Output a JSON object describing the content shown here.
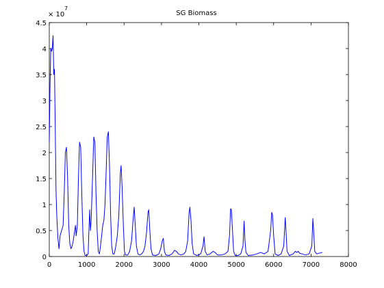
{
  "chart_data": {
    "type": "line",
    "title": "SG  Biomass",
    "xlabel": "",
    "ylabel": "",
    "xlim": [
      0,
      8000
    ],
    "ylim": [
      0,
      4.5
    ],
    "y_multiplier_label": "× 10",
    "y_multiplier_exponent": "7",
    "x_ticks": [
      0,
      1000,
      2000,
      3000,
      4000,
      5000,
      6000,
      7000,
      8000
    ],
    "x_tick_labels": [
      "0",
      "1000",
      "2000",
      "3000",
      "4000",
      "5000",
      "6000",
      "7000",
      "8000"
    ],
    "y_ticks": [
      0,
      0.5,
      1,
      1.5,
      2,
      2.5,
      3,
      3.5,
      4,
      4.5
    ],
    "y_tick_labels": [
      "0",
      "0.5",
      "1",
      "1.5",
      "2",
      "2.5",
      "3",
      "3.5",
      "4",
      "4.5"
    ],
    "grid": false,
    "line_color": "#0000ff",
    "series": [
      {
        "values": [
          [
            0,
            2.2
          ],
          [
            20,
            3.3
          ],
          [
            40,
            4.0
          ],
          [
            60,
            3.95
          ],
          [
            80,
            4.0
          ],
          [
            100,
            4.25
          ],
          [
            120,
            3.5
          ],
          [
            140,
            3.6
          ],
          [
            160,
            2.5
          ],
          [
            180,
            1.3
          ],
          [
            200,
            0.8
          ],
          [
            230,
            0.35
          ],
          [
            260,
            0.15
          ],
          [
            290,
            0.4
          ],
          [
            330,
            0.5
          ],
          [
            370,
            0.6
          ],
          [
            400,
            1.2
          ],
          [
            430,
            2.0
          ],
          [
            460,
            2.1
          ],
          [
            490,
            1.5
          ],
          [
            520,
            0.6
          ],
          [
            550,
            0.25
          ],
          [
            580,
            0.15
          ],
          [
            610,
            0.2
          ],
          [
            640,
            0.3
          ],
          [
            670,
            0.45
          ],
          [
            700,
            0.6
          ],
          [
            720,
            0.4
          ],
          [
            750,
            0.6
          ],
          [
            780,
            1.5
          ],
          [
            810,
            2.2
          ],
          [
            840,
            2.1
          ],
          [
            870,
            1.2
          ],
          [
            900,
            0.4
          ],
          [
            930,
            0.1
          ],
          [
            960,
            0.02
          ],
          [
            1000,
            0.02
          ],
          [
            1040,
            0.05
          ],
          [
            1060,
            0.5
          ],
          [
            1080,
            0.9
          ],
          [
            1100,
            0.5
          ],
          [
            1120,
            0.7
          ],
          [
            1160,
            1.6
          ],
          [
            1190,
            2.3
          ],
          [
            1220,
            2.2
          ],
          [
            1250,
            1.2
          ],
          [
            1280,
            0.5
          ],
          [
            1310,
            0.1
          ],
          [
            1340,
            0.05
          ],
          [
            1370,
            0.2
          ],
          [
            1400,
            0.4
          ],
          [
            1430,
            0.6
          ],
          [
            1460,
            0.7
          ],
          [
            1490,
            1.0
          ],
          [
            1520,
            1.6
          ],
          [
            1550,
            2.3
          ],
          [
            1580,
            2.4
          ],
          [
            1610,
            1.8
          ],
          [
            1640,
            0.8
          ],
          [
            1670,
            0.2
          ],
          [
            1700,
            0.05
          ],
          [
            1740,
            0.05
          ],
          [
            1780,
            0.2
          ],
          [
            1820,
            0.4
          ],
          [
            1860,
            0.8
          ],
          [
            1900,
            1.6
          ],
          [
            1920,
            1.75
          ],
          [
            1950,
            1.3
          ],
          [
            1980,
            0.6
          ],
          [
            2010,
            0.1
          ],
          [
            2040,
            0.03
          ],
          [
            2100,
            0.03
          ],
          [
            2150,
            0.1
          ],
          [
            2200,
            0.3
          ],
          [
            2240,
            0.7
          ],
          [
            2270,
            0.95
          ],
          [
            2300,
            0.6
          ],
          [
            2330,
            0.2
          ],
          [
            2370,
            0.05
          ],
          [
            2420,
            0.03
          ],
          [
            2470,
            0.05
          ],
          [
            2520,
            0.1
          ],
          [
            2560,
            0.2
          ],
          [
            2600,
            0.45
          ],
          [
            2640,
            0.85
          ],
          [
            2660,
            0.9
          ],
          [
            2690,
            0.5
          ],
          [
            2720,
            0.15
          ],
          [
            2760,
            0.03
          ],
          [
            2850,
            0.02
          ],
          [
            2930,
            0.05
          ],
          [
            2980,
            0.15
          ],
          [
            3020,
            0.3
          ],
          [
            3050,
            0.35
          ],
          [
            3080,
            0.1
          ],
          [
            3120,
            0.03
          ],
          [
            3200,
            0.02
          ],
          [
            3280,
            0.05
          ],
          [
            3350,
            0.12
          ],
          [
            3400,
            0.1
          ],
          [
            3450,
            0.05
          ],
          [
            3520,
            0.03
          ],
          [
            3600,
            0.05
          ],
          [
            3650,
            0.1
          ],
          [
            3700,
            0.3
          ],
          [
            3740,
            0.85
          ],
          [
            3760,
            0.95
          ],
          [
            3790,
            0.7
          ],
          [
            3820,
            0.25
          ],
          [
            3860,
            0.05
          ],
          [
            3950,
            0.02
          ],
          [
            4050,
            0.05
          ],
          [
            4110,
            0.2
          ],
          [
            4140,
            0.38
          ],
          [
            4170,
            0.1
          ],
          [
            4220,
            0.03
          ],
          [
            4300,
            0.05
          ],
          [
            4380,
            0.1
          ],
          [
            4430,
            0.08
          ],
          [
            4500,
            0.03
          ],
          [
            4600,
            0.03
          ],
          [
            4700,
            0.05
          ],
          [
            4780,
            0.1
          ],
          [
            4820,
            0.4
          ],
          [
            4850,
            0.92
          ],
          [
            4870,
            0.9
          ],
          [
            4900,
            0.5
          ],
          [
            4930,
            0.1
          ],
          [
            4970,
            0.02
          ],
          [
            5050,
            0.02
          ],
          [
            5120,
            0.05
          ],
          [
            5180,
            0.2
          ],
          [
            5210,
            0.68
          ],
          [
            5230,
            0.35
          ],
          [
            5260,
            0.08
          ],
          [
            5320,
            0.02
          ],
          [
            5450,
            0.03
          ],
          [
            5550,
            0.05
          ],
          [
            5650,
            0.08
          ],
          [
            5750,
            0.05
          ],
          [
            5850,
            0.1
          ],
          [
            5920,
            0.5
          ],
          [
            5950,
            0.85
          ],
          [
            5970,
            0.8
          ],
          [
            6000,
            0.4
          ],
          [
            6040,
            0.05
          ],
          [
            6120,
            0.02
          ],
          [
            6200,
            0.05
          ],
          [
            6270,
            0.2
          ],
          [
            6310,
            0.75
          ],
          [
            6330,
            0.5
          ],
          [
            6360,
            0.1
          ],
          [
            6420,
            0.02
          ],
          [
            6520,
            0.05
          ],
          [
            6580,
            0.1
          ],
          [
            6620,
            0.08
          ],
          [
            6660,
            0.1
          ],
          [
            6700,
            0.06
          ],
          [
            6760,
            0.05
          ],
          [
            6850,
            0.03
          ],
          [
            6950,
            0.05
          ],
          [
            7020,
            0.2
          ],
          [
            7050,
            0.73
          ],
          [
            7070,
            0.5
          ],
          [
            7100,
            0.1
          ],
          [
            7150,
            0.05
          ],
          [
            7250,
            0.07
          ],
          [
            7300,
            0.08
          ]
        ]
      }
    ]
  }
}
